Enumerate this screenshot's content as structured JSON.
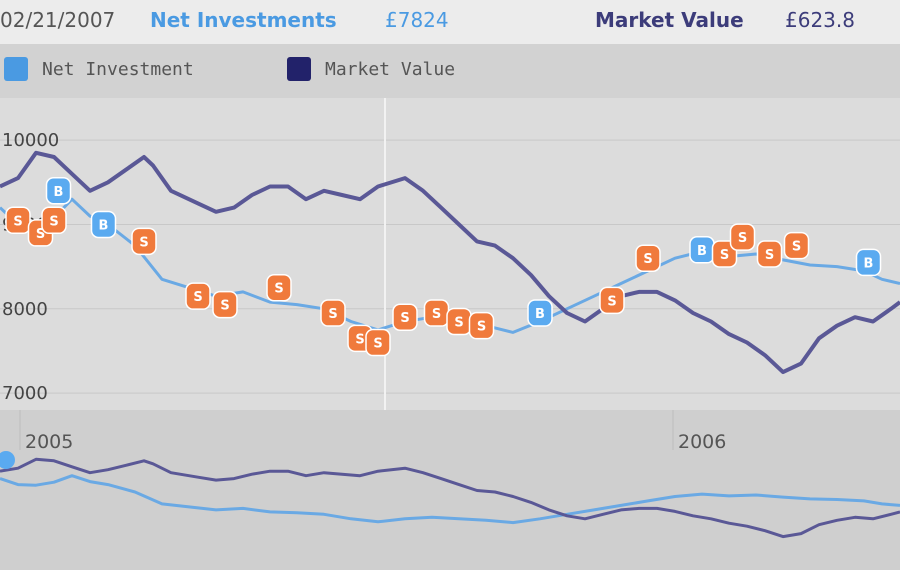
{
  "header": {
    "date": "02/21/2007",
    "investment_label": "Net Investments",
    "investment_value": "£7824",
    "market_label": "Market Value",
    "market_value": "£623.8"
  },
  "legend": [
    {
      "label": "Net Investment",
      "color": "#4a9ae2"
    },
    {
      "label": "Market Value",
      "color": "#22226a"
    }
  ],
  "colors": {
    "investment": "#6aa9e4",
    "market": "#5a5896",
    "marker_orange": "#f07a3c",
    "marker_blue": "#5aaaf0"
  },
  "chart_data": {
    "type": "line",
    "ytick_labels": [
      "10000",
      "9000",
      "8000",
      "7000"
    ],
    "year_labels": [
      "2005",
      "2006"
    ],
    "x_range": [
      0,
      100
    ],
    "y_range": [
      6800,
      10500
    ],
    "series": [
      {
        "name": "Net Investment",
        "points": [
          [
            0,
            9200
          ],
          [
            2,
            9000
          ],
          [
            4,
            8980
          ],
          [
            6,
            9080
          ],
          [
            8,
            9300
          ],
          [
            10,
            9100
          ],
          [
            12,
            9000
          ],
          [
            15,
            8750
          ],
          [
            18,
            8350
          ],
          [
            21,
            8250
          ],
          [
            24,
            8150
          ],
          [
            27,
            8200
          ],
          [
            30,
            8080
          ],
          [
            33,
            8050
          ],
          [
            36,
            8000
          ],
          [
            39,
            7850
          ],
          [
            42,
            7750
          ],
          [
            45,
            7850
          ],
          [
            48,
            7900
          ],
          [
            51,
            7850
          ],
          [
            54,
            7800
          ],
          [
            57,
            7720
          ],
          [
            60,
            7850
          ],
          [
            63,
            8000
          ],
          [
            66,
            8150
          ],
          [
            69,
            8300
          ],
          [
            72,
            8450
          ],
          [
            75,
            8600
          ],
          [
            78,
            8680
          ],
          [
            81,
            8620
          ],
          [
            84,
            8650
          ],
          [
            87,
            8580
          ],
          [
            90,
            8520
          ],
          [
            93,
            8500
          ],
          [
            96,
            8450
          ],
          [
            98,
            8350
          ],
          [
            100,
            8300
          ]
        ]
      },
      {
        "name": "Market Value",
        "points": [
          [
            0,
            9450
          ],
          [
            2,
            9550
          ],
          [
            4,
            9850
          ],
          [
            6,
            9800
          ],
          [
            8,
            9600
          ],
          [
            10,
            9400
          ],
          [
            12,
            9500
          ],
          [
            14,
            9650
          ],
          [
            16,
            9800
          ],
          [
            17,
            9700
          ],
          [
            19,
            9400
          ],
          [
            22,
            9250
          ],
          [
            24,
            9150
          ],
          [
            26,
            9200
          ],
          [
            28,
            9350
          ],
          [
            30,
            9450
          ],
          [
            32,
            9450
          ],
          [
            34,
            9300
          ],
          [
            36,
            9400
          ],
          [
            38,
            9350
          ],
          [
            40,
            9300
          ],
          [
            42,
            9450
          ],
          [
            45,
            9550
          ],
          [
            47,
            9400
          ],
          [
            49,
            9200
          ],
          [
            51,
            9000
          ],
          [
            53,
            8800
          ],
          [
            55,
            8750
          ],
          [
            57,
            8600
          ],
          [
            59,
            8400
          ],
          [
            61,
            8150
          ],
          [
            63,
            7950
          ],
          [
            65,
            7850
          ],
          [
            67,
            8000
          ],
          [
            69,
            8150
          ],
          [
            71,
            8200
          ],
          [
            73,
            8200
          ],
          [
            75,
            8100
          ],
          [
            77,
            7950
          ],
          [
            79,
            7850
          ],
          [
            81,
            7700
          ],
          [
            83,
            7600
          ],
          [
            85,
            7450
          ],
          [
            87,
            7250
          ],
          [
            89,
            7350
          ],
          [
            91,
            7650
          ],
          [
            93,
            7800
          ],
          [
            95,
            7900
          ],
          [
            97,
            7850
          ],
          [
            99,
            8000
          ],
          [
            100,
            8080
          ]
        ]
      }
    ],
    "markers": [
      {
        "x": 2,
        "y": 9050,
        "label": "S",
        "kind": "orange"
      },
      {
        "x": 4.5,
        "y": 8900,
        "label": "S",
        "kind": "orange"
      },
      {
        "x": 6,
        "y": 9050,
        "label": "S",
        "kind": "orange"
      },
      {
        "x": 6.5,
        "y": 9400,
        "label": "B",
        "kind": "blue"
      },
      {
        "x": 11.5,
        "y": 9000,
        "label": "B",
        "kind": "blue"
      },
      {
        "x": 16,
        "y": 8800,
        "label": "S",
        "kind": "orange"
      },
      {
        "x": 22,
        "y": 8150,
        "label": "S",
        "kind": "orange"
      },
      {
        "x": 25,
        "y": 8050,
        "label": "S",
        "kind": "orange"
      },
      {
        "x": 31,
        "y": 8250,
        "label": "S",
        "kind": "orange"
      },
      {
        "x": 37,
        "y": 7950,
        "label": "S",
        "kind": "orange"
      },
      {
        "x": 40,
        "y": 7650,
        "label": "S",
        "kind": "orange"
      },
      {
        "x": 42,
        "y": 7600,
        "label": "S",
        "kind": "orange"
      },
      {
        "x": 45,
        "y": 7900,
        "label": "S",
        "kind": "orange"
      },
      {
        "x": 48.5,
        "y": 7950,
        "label": "S",
        "kind": "orange"
      },
      {
        "x": 51,
        "y": 7850,
        "label": "S",
        "kind": "orange"
      },
      {
        "x": 53.5,
        "y": 7800,
        "label": "S",
        "kind": "orange"
      },
      {
        "x": 60,
        "y": 7950,
        "label": "B",
        "kind": "blue"
      },
      {
        "x": 68,
        "y": 8100,
        "label": "S",
        "kind": "orange"
      },
      {
        "x": 72,
        "y": 8600,
        "label": "S",
        "kind": "orange"
      },
      {
        "x": 78,
        "y": 8700,
        "label": "B",
        "kind": "blue"
      },
      {
        "x": 80.5,
        "y": 8650,
        "label": "S",
        "kind": "orange"
      },
      {
        "x": 82.5,
        "y": 8850,
        "label": "S",
        "kind": "orange"
      },
      {
        "x": 85.5,
        "y": 8650,
        "label": "S",
        "kind": "orange"
      },
      {
        "x": 88.5,
        "y": 8750,
        "label": "S",
        "kind": "orange"
      },
      {
        "x": 96.5,
        "y": 8550,
        "label": "B",
        "kind": "blue"
      }
    ]
  }
}
